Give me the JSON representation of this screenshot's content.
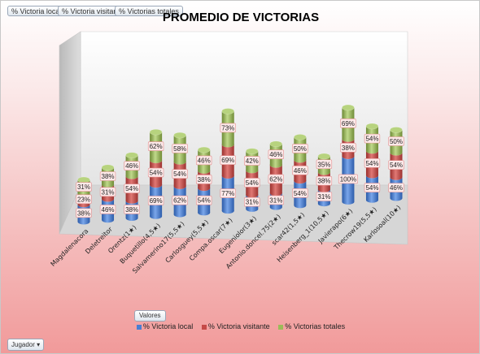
{
  "field_buttons": {
    "local": "% Victoria local",
    "visitante": "% Victoria visitante",
    "totales": "% Victorias totales"
  },
  "valores_button": "Valores",
  "jugador_button": "Jugador",
  "jugador_dropdown_icon": "triangle-down",
  "colors": {
    "local": "#4a7ed1",
    "visitante": "#c54a48",
    "totales": "#9bbb59",
    "label_fill": "#fde9e9",
    "label_border": "#e09090"
  },
  "chart_data": {
    "type": "bar",
    "stacked": true,
    "three_d": true,
    "title": "PROMEDIO DE VICTORIAS",
    "categories": [
      "Magdalenacora",
      "Deletreitor",
      "Orentz(1★)",
      "Buquetillo(4,5★)",
      "Salvamerino17(5,5★)",
      "Carlosguey(5,5★)",
      "Compa.oscar(7★)",
      "Eugeniolor(3★)",
      "Antonio.doncel.75(2★)",
      "scar42(1,5★)",
      "Heisenberg_1(10,5★)",
      "Javierapo(6★)",
      "Thecrow19(5,5★)",
      "Karlosoal(10★)"
    ],
    "series": [
      {
        "name": "% Victoria local",
        "values": [
          38,
          46,
          38,
          69,
          62,
          54,
          77,
          31,
          31,
          54,
          31,
          100,
          54,
          46
        ],
        "labels": [
          "38%",
          "46%",
          "38%",
          "69%",
          "62%",
          "54%",
          "77%",
          "31%",
          "31%",
          "54%",
          "31%",
          "100%",
          "54%",
          "46%"
        ]
      },
      {
        "name": "% Victoria visitante",
        "values": [
          23,
          31,
          54,
          54,
          54,
          38,
          69,
          54,
          62,
          46,
          38,
          38,
          54,
          54
        ],
        "labels": [
          "23%",
          "31%",
          "54%",
          "54%",
          "54%",
          "38%",
          "69%",
          "54%",
          "62%",
          "46%",
          "38%",
          "38%",
          "54%",
          "54%"
        ]
      },
      {
        "name": "% Victorias totales",
        "values": [
          31,
          38,
          46,
          62,
          58,
          46,
          73,
          42,
          46,
          50,
          35,
          69,
          54,
          50
        ],
        "labels": [
          "31%",
          "38%",
          "46%",
          "62%",
          "58%",
          "46%",
          "73%",
          "42%",
          "46%",
          "50%",
          "35%",
          "69%",
          "54%",
          "50%"
        ]
      }
    ],
    "legend_position": "bottom",
    "grid": false
  }
}
